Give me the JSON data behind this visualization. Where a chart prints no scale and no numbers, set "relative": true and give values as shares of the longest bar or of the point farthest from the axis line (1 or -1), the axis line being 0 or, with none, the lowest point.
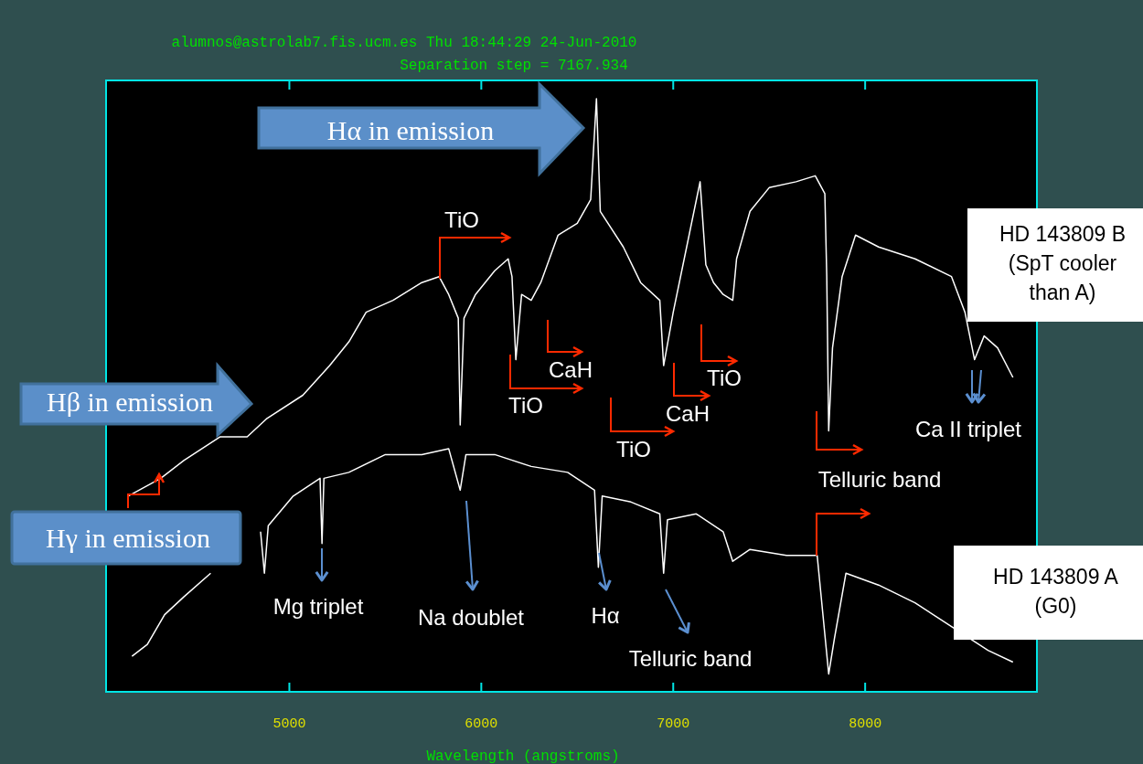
{
  "chart_data": {
    "type": "line",
    "relative": true,
    "title": "alumnos@astrolab7.fis.ucm.es Thu 18:44:29 24-Jun-2010",
    "subtitle": "Separation step = 7167.934",
    "xlabel": "Wavelength (angstroms)",
    "xlim": [
      4045,
      8895
    ],
    "xticks": [
      5000,
      6000,
      7000,
      8000
    ],
    "legend": false,
    "grid": false,
    "marker": "none",
    "line_style": "solid",
    "series": [
      {
        "name": "HD 143809 B (SpT cooler than A)",
        "color": "#ffffff",
        "x": [
          4160,
          4330,
          4450,
          4640,
          4780,
          4880,
          5070,
          5210,
          5310,
          5400,
          5540,
          5690,
          5780,
          5830,
          5880,
          5890,
          5910,
          5970,
          6070,
          6140,
          6160,
          6180,
          6210,
          6260,
          6310,
          6400,
          6500,
          6570,
          6600,
          6620,
          6740,
          6830,
          6930,
          6950,
          7000,
          7070,
          7140,
          7170,
          7210,
          7260,
          7310,
          7330,
          7400,
          7500,
          7640,
          7740,
          7790,
          7800,
          7810,
          7830,
          7880,
          7950,
          8070,
          8260,
          8450,
          8520,
          8570,
          8620,
          8690,
          8770
        ],
        "values": [
          0.33,
          0.36,
          0.39,
          0.43,
          0.43,
          0.46,
          0.5,
          0.55,
          0.59,
          0.64,
          0.66,
          0.69,
          0.7,
          0.67,
          0.63,
          0.45,
          0.63,
          0.67,
          0.71,
          0.73,
          0.7,
          0.56,
          0.67,
          0.66,
          0.69,
          0.77,
          0.79,
          0.83,
          1,
          0.81,
          0.75,
          0.69,
          0.66,
          0.55,
          0.64,
          0.75,
          0.86,
          0.72,
          0.69,
          0.67,
          0.66,
          0.73,
          0.81,
          0.85,
          0.86,
          0.87,
          0.84,
          0.7,
          0.44,
          0.58,
          0.7,
          0.77,
          0.75,
          0.73,
          0.7,
          0.64,
          0.56,
          0.6,
          0.58,
          0.53
        ]
      },
      {
        "name": "HD 143809 A (G0)",
        "color": "#ffffff",
        "x": [
          4180,
          4260,
          4350,
          4450,
          4590,
          4730,
          4850,
          4870,
          4890,
          5020,
          5160,
          5170,
          5180,
          5310,
          5500,
          5690,
          5830,
          5890,
          5920,
          6070,
          6260,
          6450,
          6590,
          6610,
          6630,
          6780,
          6930,
          6950,
          6970,
          7120,
          7260,
          7310,
          7400,
          7590,
          7750,
          7810,
          7840,
          7900,
          8070,
          8260,
          8450,
          8640,
          8770
        ],
        "values": [
          0.06,
          0.08,
          0.13,
          0.16,
          0.2,
          null,
          0.27,
          0.2,
          0.28,
          0.33,
          0.36,
          0.25,
          0.36,
          0.37,
          0.4,
          0.4,
          0.41,
          0.34,
          0.4,
          0.4,
          0.38,
          0.37,
          0.34,
          0.21,
          0.33,
          0.32,
          0.3,
          0.2,
          0.29,
          0.3,
          0.27,
          0.22,
          0.24,
          0.23,
          0.23,
          0.03,
          0.09,
          0.2,
          0.18,
          0.15,
          0.11,
          0.07,
          0.05
        ]
      }
    ],
    "annotations": [
      "Hα in emission",
      "Hβ in emission",
      "Hγ  in emission",
      "TiO",
      "CaH",
      "TiO",
      "TiO",
      "CaH",
      "TiO",
      "Telluric band",
      "Ca II triplet",
      "Mg triplet",
      "Na doublet",
      "Hα",
      "Telluric band"
    ]
  }
}
